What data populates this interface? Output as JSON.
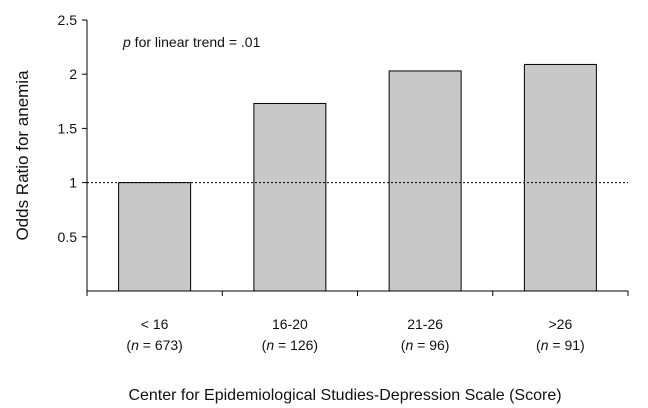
{
  "chart_data": {
    "type": "bar",
    "annotation": {
      "prefix": "p",
      "text": " for linear trend = .01"
    },
    "xlabel": "Center for Epidemiological Studies-Depression Scale (Score)",
    "ylabel": "Odds Ratio for anemia",
    "ylim": [
      0,
      2.5
    ],
    "yticks": [
      0.5,
      1,
      1.5,
      2,
      2.5
    ],
    "ytick_labels": [
      "0.5",
      "1",
      "1.5",
      "2",
      "2.5"
    ],
    "reference_line": 1,
    "categories": [
      "< 16",
      "16-20",
      "21-26",
      ">26"
    ],
    "n_values": [
      "673",
      "126",
      "96",
      "91"
    ],
    "n_prefix": "n",
    "values": [
      1.0,
      1.73,
      2.03,
      2.09
    ],
    "bar_color": "#c8c8c8",
    "grid": false
  }
}
